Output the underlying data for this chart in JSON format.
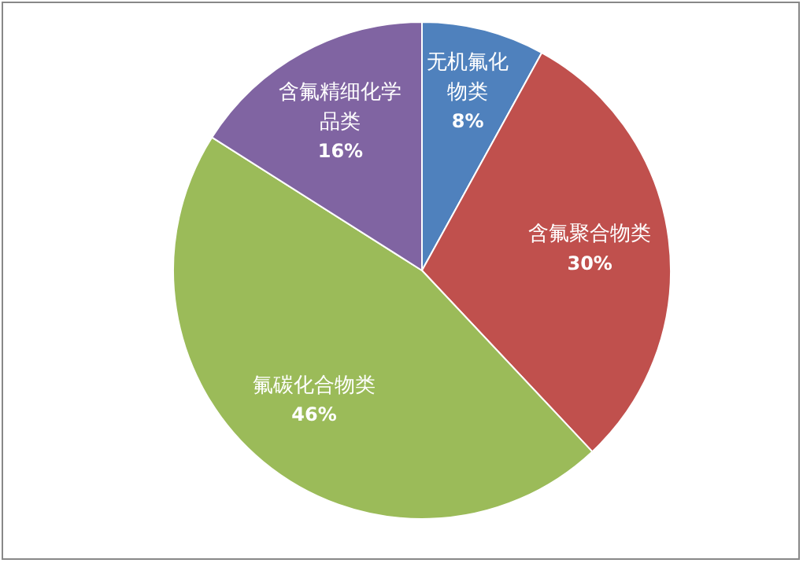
{
  "chart_data": {
    "type": "pie",
    "categories": [
      "无机氟化物类",
      "含氟聚合物类",
      "氟碳化合物类",
      "含氟精细化学品类"
    ],
    "values": [
      8,
      30,
      46,
      16
    ],
    "colors": [
      "#4f81bd",
      "#c0504d",
      "#9bbb59",
      "#8064a2"
    ],
    "value_labels": [
      "8%",
      "30%",
      "46%",
      "16%"
    ],
    "legend": false
  }
}
